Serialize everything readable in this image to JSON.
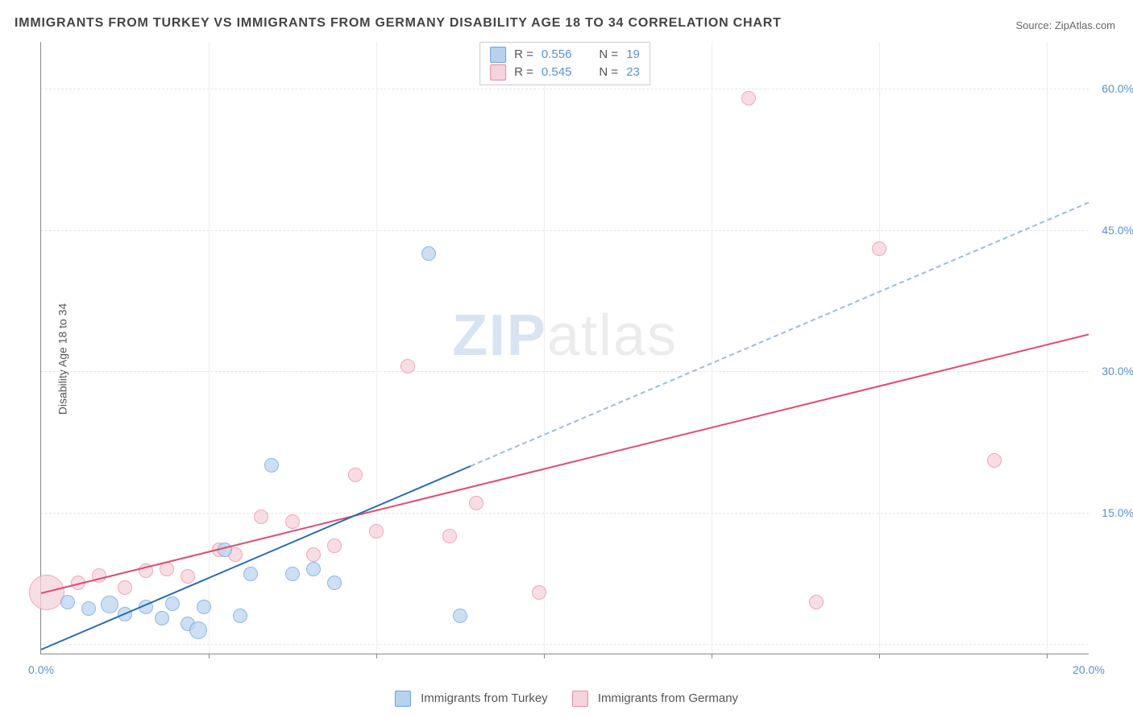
{
  "title": "IMMIGRANTS FROM TURKEY VS IMMIGRANTS FROM GERMANY DISABILITY AGE 18 TO 34 CORRELATION CHART",
  "source": "Source: ZipAtlas.com",
  "ylabel": "Disability Age 18 to 34",
  "watermark_zip": "ZIP",
  "watermark_atlas": "atlas",
  "chart": {
    "type": "scatter",
    "xlim": [
      0,
      20
    ],
    "ylim": [
      0,
      65
    ],
    "xtick_labels": [
      {
        "x": 0,
        "label": "0.0%"
      },
      {
        "x": 20,
        "label": "20.0%"
      }
    ],
    "xtick_marks": [
      3.2,
      6.4,
      9.6,
      12.8,
      16.0,
      19.2
    ],
    "ytick_labels": [
      {
        "y": 15,
        "label": "15.0%"
      },
      {
        "y": 30,
        "label": "30.0%"
      },
      {
        "y": 45,
        "label": "45.0%"
      },
      {
        "y": 60,
        "label": "60.0%"
      }
    ],
    "grid_h": [
      1,
      15,
      30,
      45,
      60
    ],
    "series": {
      "turkey": {
        "label": "Immigrants from Turkey",
        "fill": "#bcd5ef",
        "stroke": "#6aa0db",
        "legend_fill": "#b8d2ee",
        "legend_stroke": "#6aa0db",
        "trend_color": "#2b6cb0",
        "trend_dash_color": "#9cbbe3",
        "R": "0.556",
        "N": "19",
        "points": [
          {
            "x": 0.5,
            "y": 5.5,
            "r": 9
          },
          {
            "x": 0.9,
            "y": 4.8,
            "r": 9
          },
          {
            "x": 1.3,
            "y": 5.2,
            "r": 11
          },
          {
            "x": 1.6,
            "y": 4.2,
            "r": 9
          },
          {
            "x": 2.0,
            "y": 5.0,
            "r": 9
          },
          {
            "x": 2.3,
            "y": 3.8,
            "r": 9
          },
          {
            "x": 2.5,
            "y": 5.3,
            "r": 9
          },
          {
            "x": 2.8,
            "y": 3.2,
            "r": 9
          },
          {
            "x": 3.0,
            "y": 2.5,
            "r": 11
          },
          {
            "x": 3.1,
            "y": 5.0,
            "r": 9
          },
          {
            "x": 3.5,
            "y": 11.0,
            "r": 9
          },
          {
            "x": 3.8,
            "y": 4.0,
            "r": 9
          },
          {
            "x": 4.0,
            "y": 8.5,
            "r": 9
          },
          {
            "x": 4.4,
            "y": 20.0,
            "r": 9
          },
          {
            "x": 4.8,
            "y": 8.5,
            "r": 9
          },
          {
            "x": 5.2,
            "y": 9.0,
            "r": 9
          },
          {
            "x": 5.6,
            "y": 7.5,
            "r": 9
          },
          {
            "x": 7.4,
            "y": 42.5,
            "r": 9
          },
          {
            "x": 8.0,
            "y": 4.0,
            "r": 9
          }
        ],
        "trend": {
          "x1": 0,
          "y1": 0.5,
          "x2": 8.2,
          "y2": 20.0,
          "dash_x2": 20,
          "dash_y2": 48
        }
      },
      "germany": {
        "label": "Immigrants from Germany",
        "fill": "#f6d4dc",
        "stroke": "#e88aa2",
        "legend_fill": "#f6d4dc",
        "legend_stroke": "#e88aa2",
        "trend_color": "#e14b71",
        "R": "0.545",
        "N": "23",
        "points": [
          {
            "x": 0.1,
            "y": 6.5,
            "r": 22
          },
          {
            "x": 0.7,
            "y": 7.5,
            "r": 9
          },
          {
            "x": 1.1,
            "y": 8.3,
            "r": 9
          },
          {
            "x": 1.6,
            "y": 7.0,
            "r": 9
          },
          {
            "x": 2.0,
            "y": 8.8,
            "r": 9
          },
          {
            "x": 2.4,
            "y": 9.0,
            "r": 9
          },
          {
            "x": 2.8,
            "y": 8.2,
            "r": 9
          },
          {
            "x": 3.4,
            "y": 11.0,
            "r": 9
          },
          {
            "x": 3.7,
            "y": 10.5,
            "r": 9
          },
          {
            "x": 4.2,
            "y": 14.5,
            "r": 9
          },
          {
            "x": 4.8,
            "y": 14.0,
            "r": 9
          },
          {
            "x": 5.2,
            "y": 10.5,
            "r": 9
          },
          {
            "x": 5.6,
            "y": 11.5,
            "r": 9
          },
          {
            "x": 6.0,
            "y": 19.0,
            "r": 9
          },
          {
            "x": 6.4,
            "y": 13.0,
            "r": 9
          },
          {
            "x": 7.0,
            "y": 30.5,
            "r": 9
          },
          {
            "x": 7.8,
            "y": 12.5,
            "r": 9
          },
          {
            "x": 8.3,
            "y": 16.0,
            "r": 9
          },
          {
            "x": 9.5,
            "y": 6.5,
            "r": 9
          },
          {
            "x": 13.5,
            "y": 59.0,
            "r": 9
          },
          {
            "x": 14.8,
            "y": 5.5,
            "r": 9
          },
          {
            "x": 16.0,
            "y": 43.0,
            "r": 9
          },
          {
            "x": 18.2,
            "y": 20.5,
            "r": 9
          }
        ],
        "trend": {
          "x1": 0,
          "y1": 6.5,
          "x2": 20,
          "y2": 34
        }
      }
    }
  },
  "legend_top": {
    "R_label": "R =",
    "N_label": "N ="
  }
}
